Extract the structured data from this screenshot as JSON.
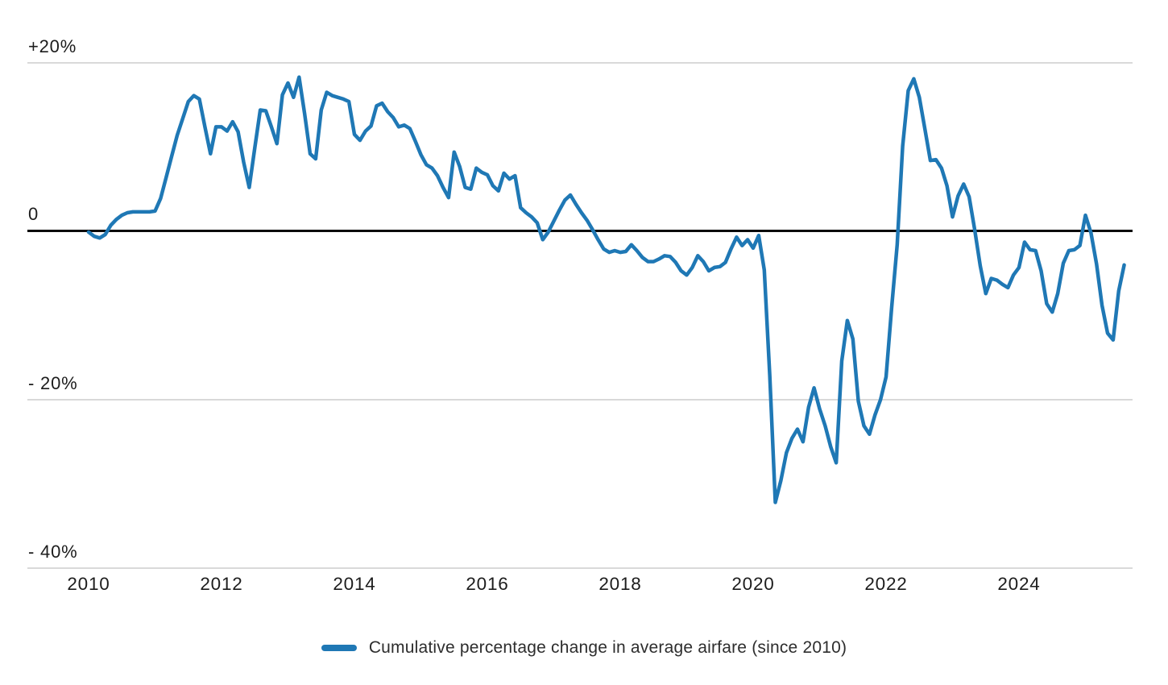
{
  "chart_data": {
    "type": "line",
    "title": "Cumulative percentage change in average airfare (since 2010)",
    "grid": "horizontal",
    "legend_position": "bottom-center",
    "line_color": "#1f78b5",
    "zero_line_color": "#0b0b0b",
    "gridline_color": "#d9d9d9",
    "x_axis": {
      "tick_labels": [
        "2010",
        "2012",
        "2014",
        "2016",
        "2018",
        "2020",
        "2022",
        "2024"
      ],
      "start": "2010-01",
      "end": "2025-08",
      "frequency": "monthly"
    },
    "y_axis": {
      "unit": "percent",
      "ticks": [
        {
          "label": "+20%",
          "value": 20
        },
        {
          "label": "0",
          "value": 0
        },
        {
          "label": "- 20%",
          "value": -20
        },
        {
          "label": "- 40%",
          "value": -40
        }
      ],
      "range": [
        -42,
        22
      ]
    },
    "series": [
      {
        "name": "Cumulative percentage change in average airfare (since 2010)",
        "start": "2010-01",
        "frequency": "monthly",
        "values": [
          0.0,
          -0.5,
          -0.7,
          -0.3,
          0.8,
          1.5,
          2.0,
          2.3,
          2.4,
          2.4,
          2.4,
          2.4,
          2.5,
          4.0,
          6.5,
          9.0,
          11.5,
          13.5,
          15.5,
          16.2,
          15.8,
          12.5,
          9.3,
          12.5,
          12.5,
          12.0,
          13.1,
          11.9,
          8.3,
          5.3,
          10.0,
          14.5,
          14.4,
          12.5,
          10.5,
          16.3,
          17.7,
          16.0,
          18.4,
          14.1,
          9.3,
          8.7,
          14.5,
          16.6,
          16.2,
          16.0,
          15.8,
          15.5,
          11.6,
          10.9,
          12.0,
          12.6,
          15.0,
          15.3,
          14.3,
          13.6,
          12.5,
          12.7,
          12.3,
          10.8,
          9.2,
          8.0,
          7.6,
          6.7,
          5.3,
          4.1,
          9.5,
          7.8,
          5.3,
          5.1,
          7.6,
          7.1,
          6.8,
          5.5,
          4.9,
          7.0,
          6.3,
          6.7,
          2.9,
          2.3,
          1.8,
          1.1,
          -0.9,
          0.0,
          1.3,
          2.6,
          3.8,
          4.4,
          3.3,
          2.3,
          1.4,
          0.3,
          -0.9,
          -2.0,
          -2.4,
          -2.2,
          -2.4,
          -2.3,
          -1.5,
          -2.2,
          -3.0,
          -3.5,
          -3.5,
          -3.2,
          -2.8,
          -2.9,
          -3.6,
          -4.6,
          -5.1,
          -4.2,
          -2.8,
          -3.5,
          -4.6,
          -4.2,
          -4.1,
          -3.6,
          -2.0,
          -0.6,
          -1.6,
          -0.9,
          -1.9,
          -0.4,
          -4.5,
          -17.0,
          -32.1,
          -29.5,
          -26.2,
          -24.5,
          -23.4,
          -24.9,
          -20.8,
          -18.5,
          -21.0,
          -23.0,
          -25.5,
          -27.4,
          -15.3,
          -10.5,
          -12.7,
          -20.1,
          -23.0,
          -24.0,
          -21.7,
          -19.9,
          -17.2,
          -9.0,
          -1.5,
          10.2,
          16.8,
          18.2,
          16.0,
          12.3,
          8.5,
          8.6,
          7.6,
          5.5,
          1.8,
          4.3,
          5.7,
          4.2,
          0.3,
          -4.0,
          -7.3,
          -5.5,
          -5.7,
          -6.2,
          -6.6,
          -5.1,
          -4.2,
          -1.2,
          -2.1,
          -2.2,
          -4.6,
          -8.5,
          -9.5,
          -7.3,
          -3.7,
          -2.2,
          -2.1,
          -1.6,
          2.0,
          -0.1,
          -3.8,
          -8.7,
          -12.0,
          -12.8,
          -7.0,
          -3.9
        ]
      }
    ],
    "legend": {
      "label": "Cumulative percentage change in average airfare (since 2010)"
    }
  }
}
